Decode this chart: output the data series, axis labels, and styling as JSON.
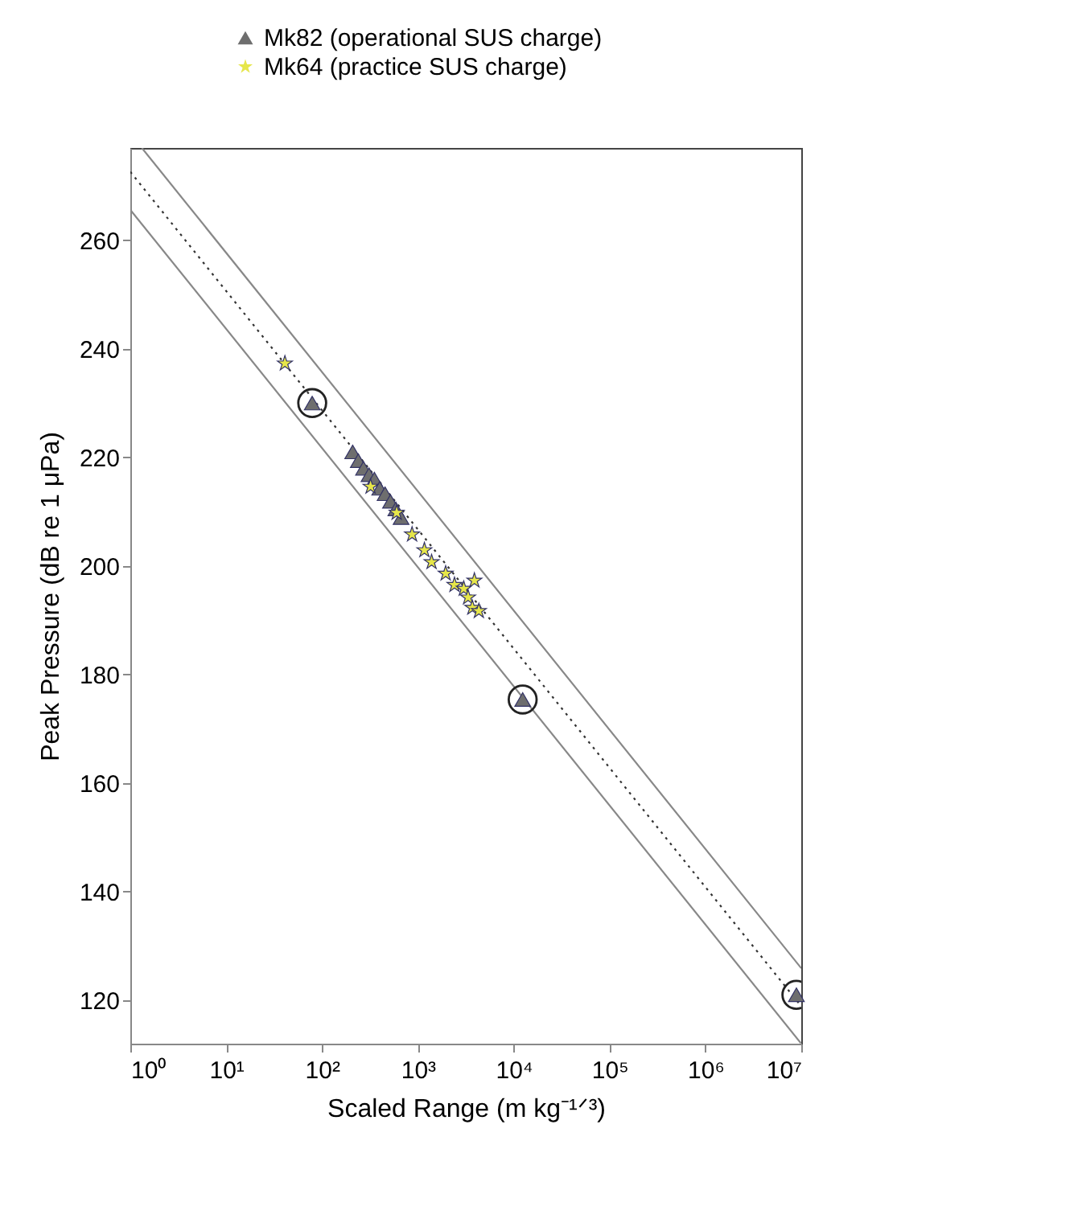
{
  "chart_data": {
    "type": "scatter",
    "xlabel": "Scaled Range (m kg⁻¹ᐟ³)",
    "ylabel": "Peak Pressure (dB re 1 μPa)",
    "log": "x",
    "xlim": [
      1,
      10000000
    ],
    "ylim": [
      112,
      277
    ],
    "xticks": [
      {
        "value": 1,
        "label": "10⁰"
      },
      {
        "value": 10,
        "label": "10¹"
      },
      {
        "value": 100,
        "label": "10²"
      },
      {
        "value": 1000,
        "label": "10³"
      },
      {
        "value": 10000,
        "label": "10⁴"
      },
      {
        "value": 100000,
        "label": "10⁵"
      },
      {
        "value": 1000000,
        "label": "10⁶"
      },
      {
        "value": 10000000,
        "label": "10⁷"
      }
    ],
    "yticks": [
      120,
      140,
      160,
      180,
      200,
      220,
      240,
      260
    ],
    "grid": false,
    "legend": "top",
    "series": [
      {
        "type": "line",
        "color": "#888888",
        "line_style": "solid",
        "x": [
          1.32,
          10000000
        ],
        "values": [
          277,
          125.9
        ]
      },
      {
        "type": "line",
        "color": "#888888",
        "line_style": "solid",
        "x": [
          1,
          9900000
        ],
        "values": [
          265.6,
          112.1
        ]
      },
      {
        "type": "line",
        "color": "#333333",
        "line_style": "dotted",
        "x": [
          1,
          10000000
        ],
        "values": [
          272.6,
          118.9
        ]
      },
      {
        "name": "Mk82 (operational SUS charge)",
        "color": "#6e6e6e",
        "marker": "triangle",
        "x": [
          79,
          12400,
          8900000,
          209,
          239,
          271,
          309,
          352,
          400,
          455,
          518,
          589,
          668
        ],
        "values": [
          230,
          175.4,
          121,
          221,
          219.4,
          218,
          216.8,
          216,
          214.3,
          213.3,
          211.9,
          210.5,
          208.9
        ]
      },
      {
        "name": "Mk64 (practice SUS charge)",
        "color": "#e6e64a",
        "marker": "star",
        "x": [
          41,
          321,
          601,
          870,
          1170,
          1390,
          1950,
          2410,
          3010,
          3890,
          3340,
          3700,
          4330
        ],
        "values": [
          237.3,
          214.6,
          209.8,
          205.8,
          202.9,
          200.7,
          198.6,
          196.5,
          195.8,
          197.3,
          194.2,
          192.3,
          191.7
        ]
      },
      {
        "color": "#222222",
        "marker": "circle",
        "x": [
          79,
          12400,
          8900000
        ],
        "values": [
          230,
          175.4,
          121
        ]
      }
    ]
  }
}
